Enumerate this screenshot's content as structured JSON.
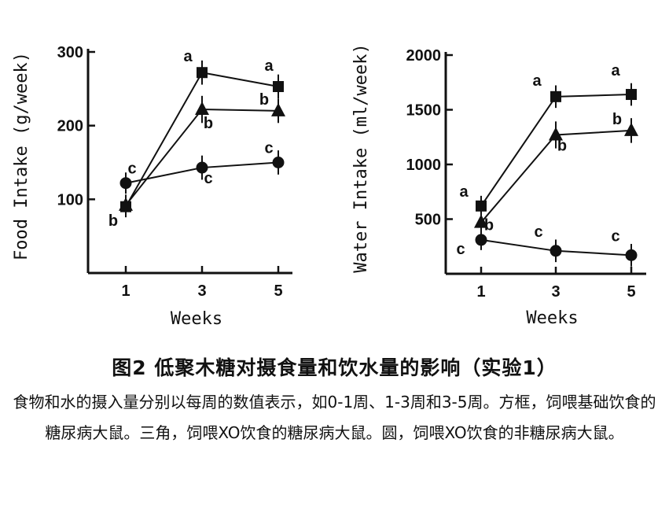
{
  "chart_data": [
    {
      "type": "line",
      "ylabel": "Food Intake (g/week)",
      "xlabel": "Weeks",
      "x": [
        1,
        3,
        5
      ],
      "xticks": [
        "1",
        "3",
        "5"
      ],
      "ylim": [
        0,
        300
      ],
      "yticks": [
        "100",
        "200",
        "300"
      ],
      "ytick_values": [
        100,
        200,
        300
      ],
      "grid": false,
      "series": [
        {
          "marker": "square",
          "values": [
            90,
            272,
            253
          ],
          "labels": [
            "",
            "a",
            "a"
          ],
          "error": [
            8,
            10,
            10
          ]
        },
        {
          "marker": "triangle",
          "values": [
            92,
            222,
            220
          ],
          "labels": [
            "b",
            "b",
            "b"
          ],
          "error": [
            8,
            12,
            10
          ]
        },
        {
          "marker": "circle",
          "values": [
            122,
            143,
            150
          ],
          "labels": [
            "c",
            "c",
            "c"
          ],
          "error": [
            8,
            10,
            10
          ]
        }
      ]
    },
    {
      "type": "line",
      "ylabel": "Water Intake (ml/week)",
      "xlabel": "Weeks",
      "x": [
        1,
        3,
        5
      ],
      "xticks": [
        "1",
        "3",
        "5"
      ],
      "ylim": [
        0,
        2000
      ],
      "yticks": [
        "500",
        "1000",
        "1500",
        "2000"
      ],
      "ytick_values": [
        500,
        1000,
        1500,
        2000
      ],
      "grid": false,
      "series": [
        {
          "marker": "square",
          "values": [
            620,
            1620,
            1640
          ],
          "labels": [
            "a",
            "a",
            "a"
          ],
          "error": [
            50,
            60,
            60
          ]
        },
        {
          "marker": "triangle",
          "values": [
            470,
            1270,
            1310
          ],
          "labels": [
            "b",
            "b",
            "b"
          ],
          "error": [
            50,
            80,
            70
          ]
        },
        {
          "marker": "circle",
          "values": [
            310,
            210,
            170
          ],
          "labels": [
            "c",
            "c",
            "c"
          ],
          "error": [
            50,
            60,
            60
          ]
        }
      ]
    }
  ],
  "caption": {
    "title": "图2 低聚木糖对摄食量和饮水量的影响（实验1）",
    "body": "食物和水的摄入量分别以每周的数值表示，如0-1周、1-3周和3-5周。方框，饲喂基础饮食的糖尿病大鼠。三角，饲喂XO饮食的糖尿病大鼠。圆，饲喂XO饮食的非糖尿病大鼠。"
  },
  "colors": {
    "ink": "#111111",
    "background": "#ffffff"
  }
}
